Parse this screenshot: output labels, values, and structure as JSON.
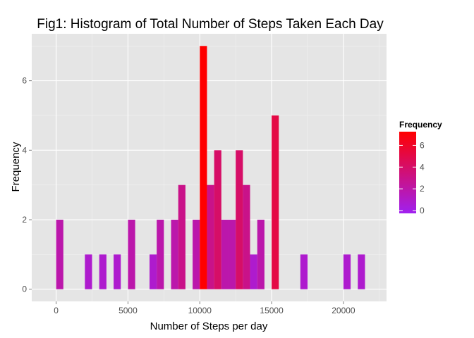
{
  "chart_data": {
    "type": "bar",
    "title": "Fig1: Histogram of Total Number of Steps Taken Each Day",
    "xlabel": "Number of Steps per day",
    "ylabel": "Frequency",
    "binwidth": 500,
    "xlim": [
      -1700,
      23000
    ],
    "ylim": [
      -0.35,
      7.35
    ],
    "x_ticks": [
      0,
      5000,
      10000,
      15000,
      20000
    ],
    "x_tick_labels": [
      "0",
      "5000",
      "10000",
      "15000",
      "20000"
    ],
    "y_ticks": [
      0,
      2,
      4,
      6
    ],
    "y_tick_labels": [
      "0",
      "2",
      "4",
      "6"
    ],
    "grid": true,
    "bins": [
      {
        "x0": 0,
        "x1": 500,
        "count": 2
      },
      {
        "x0": 2000,
        "x1": 2500,
        "count": 1
      },
      {
        "x0": 3000,
        "x1": 3500,
        "count": 1
      },
      {
        "x0": 4000,
        "x1": 4500,
        "count": 1
      },
      {
        "x0": 5000,
        "x1": 5500,
        "count": 2
      },
      {
        "x0": 6500,
        "x1": 7000,
        "count": 1
      },
      {
        "x0": 7000,
        "x1": 7500,
        "count": 2
      },
      {
        "x0": 8000,
        "x1": 8500,
        "count": 2
      },
      {
        "x0": 8500,
        "x1": 9000,
        "count": 3
      },
      {
        "x0": 9500,
        "x1": 10000,
        "count": 2
      },
      {
        "x0": 10000,
        "x1": 10500,
        "count": 7
      },
      {
        "x0": 10500,
        "x1": 11000,
        "count": 3
      },
      {
        "x0": 11000,
        "x1": 11500,
        "count": 4
      },
      {
        "x0": 11500,
        "x1": 12000,
        "count": 2
      },
      {
        "x0": 12000,
        "x1": 12500,
        "count": 2
      },
      {
        "x0": 12500,
        "x1": 13000,
        "count": 4
      },
      {
        "x0": 13000,
        "x1": 13500,
        "count": 3
      },
      {
        "x0": 13500,
        "x1": 14000,
        "count": 1
      },
      {
        "x0": 14000,
        "x1": 14500,
        "count": 2
      },
      {
        "x0": 15000,
        "x1": 15500,
        "count": 5
      },
      {
        "x0": 17000,
        "x1": 17500,
        "count": 1
      },
      {
        "x0": 20000,
        "x1": 20500,
        "count": 1
      },
      {
        "x0": 21000,
        "x1": 21500,
        "count": 1
      }
    ],
    "legend": {
      "title": "Frequency",
      "position": "right",
      "range": [
        0,
        7
      ],
      "ticks": [
        0,
        2,
        4,
        6
      ],
      "tick_labels": [
        "0",
        "2",
        "4",
        "6"
      ],
      "color_low": "#a020f0",
      "color_high": "#ff0000"
    },
    "colors": {
      "panel_background": "#e5e5e5",
      "grid_major": "#ffffff",
      "grid_minor": "#f2f2f2"
    }
  }
}
